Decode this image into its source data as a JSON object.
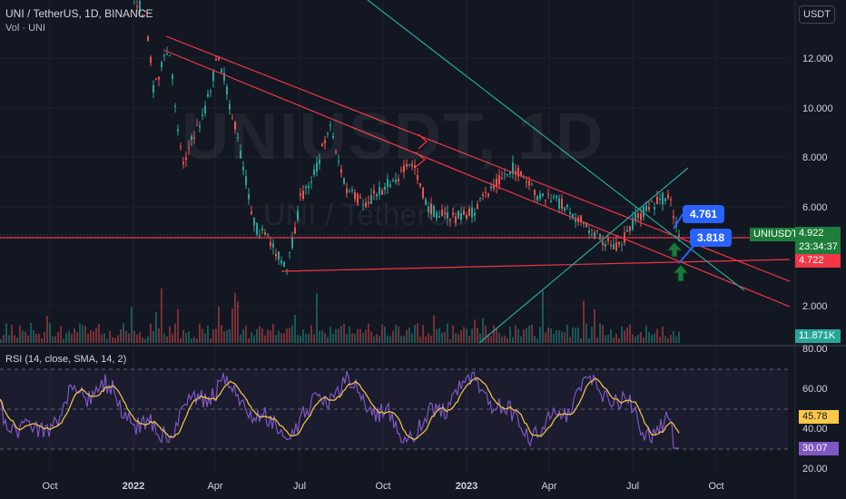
{
  "header": {
    "symbol": "UNI / TetherUS, 1D, BINANCE",
    "volume_label": "Vol · UNI",
    "currency_button": "USDT"
  },
  "watermark": {
    "ticker": "UNIUSDT, 1D",
    "name": "UNI / TetherUS"
  },
  "price_axis": {
    "ticks": [
      "12.000",
      "10.000",
      "8.000",
      "6.000",
      "2.000"
    ]
  },
  "price_tags": {
    "symbol_tag": "UNIUSDT",
    "last_price": "4.922",
    "countdown": "23:34:37",
    "line_level": "4.722",
    "volume": "11.871K"
  },
  "callouts": {
    "upper": "4.761",
    "lower": "3.818"
  },
  "rsi": {
    "label": "RSI (14, close, SMA, 14, 2)",
    "axis_ticks": [
      "80.00",
      "60.00",
      "40.00",
      "20.00"
    ],
    "value_sma": "45.78",
    "value_rsi": "30.07"
  },
  "time_axis": {
    "labels": [
      {
        "text": "Oct",
        "bold": false
      },
      {
        "text": "2022",
        "bold": true
      },
      {
        "text": "Apr",
        "bold": false
      },
      {
        "text": "Jul",
        "bold": false
      },
      {
        "text": "Oct",
        "bold": false
      },
      {
        "text": "2023",
        "bold": true
      },
      {
        "text": "Apr",
        "bold": false
      },
      {
        "text": "Jul",
        "bold": false
      },
      {
        "text": "Oct",
        "bold": false
      }
    ]
  },
  "colors": {
    "background": "#131722",
    "up": "#26a69a",
    "down": "#ef5350",
    "trendline_red": "#f23645",
    "trendline_teal": "#26a69a",
    "rsi_line": "#7e57c2",
    "rsi_sma": "#f9c846",
    "callout": "#2962ff",
    "arrow": "#1b7a3a"
  }
}
